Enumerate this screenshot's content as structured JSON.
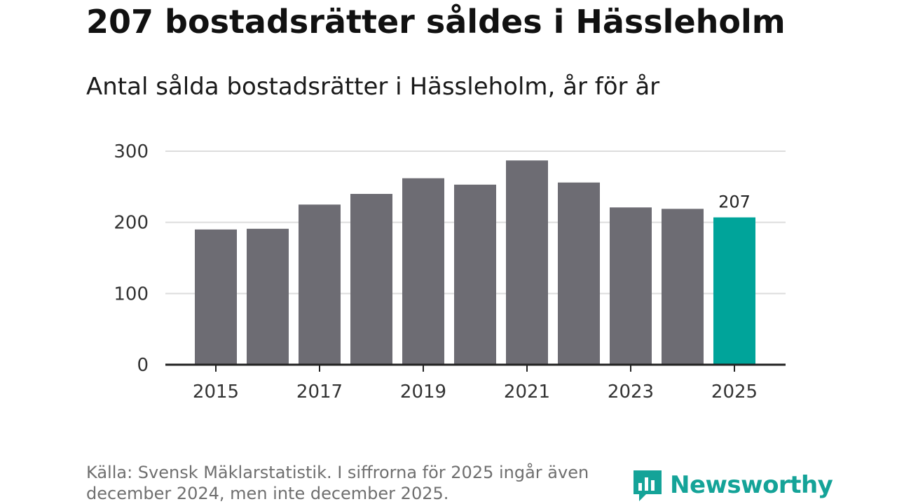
{
  "title": "207 bostadsrätter såldes i Hässleholm",
  "subtitle": "Antal sålda bostadsrätter i Hässleholm, år för år",
  "source": "Källa: Svensk Mäklarstatistik. I siffrorna för 2025 ingår även december 2024, men inte december 2025.",
  "brand": {
    "name": "Newsworthy",
    "icon": "newsworthy-logo-icon",
    "color": "#14a398"
  },
  "colors": {
    "bar": "#6d6c73",
    "highlight": "#00a49a",
    "grid": "#dddddd",
    "axis": "#222222"
  },
  "chart_data": {
    "type": "bar",
    "title": "Antal sålda bostadsrätter i Hässleholm, år för år",
    "xlabel": "",
    "ylabel": "",
    "categories": [
      "2015",
      "2016",
      "2017",
      "2018",
      "2019",
      "2020",
      "2021",
      "2022",
      "2023",
      "2024",
      "2025"
    ],
    "values": [
      190,
      191,
      225,
      240,
      262,
      253,
      287,
      256,
      221,
      219,
      207
    ],
    "highlight_index": 10,
    "data_labels": [
      {
        "index": 10,
        "text": "207"
      }
    ],
    "ylim": [
      0,
      300
    ],
    "yticks": [
      0,
      100,
      200,
      300
    ],
    "xtick_labels": [
      "2015",
      "2017",
      "2019",
      "2021",
      "2023",
      "2025"
    ],
    "grid": true,
    "legend": "none"
  }
}
